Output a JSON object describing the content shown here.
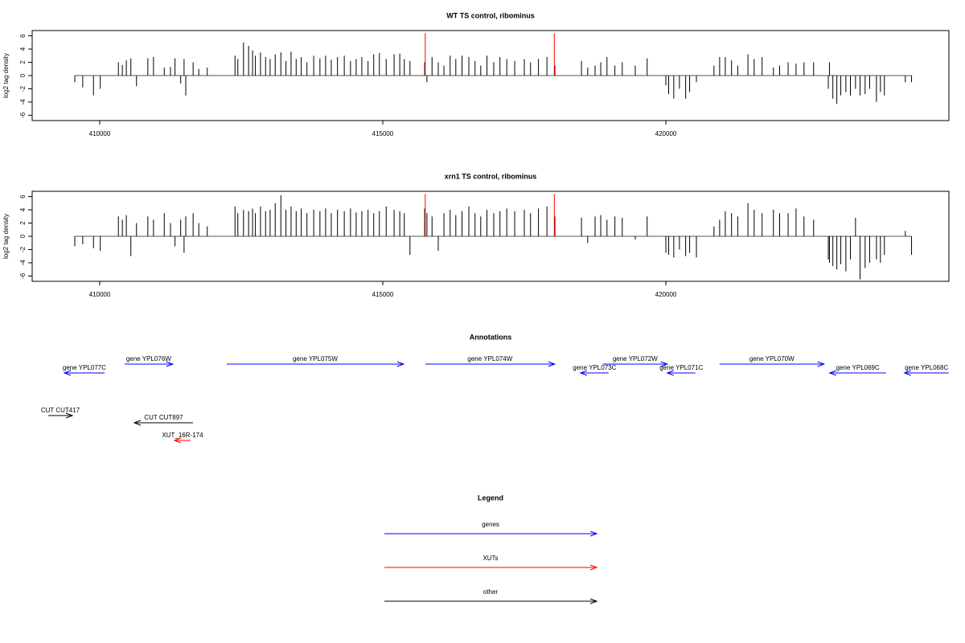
{
  "chart_data": [
    {
      "type": "bar",
      "title": "WT TS control, ribominus",
      "ylabel": "log2 tag density",
      "color": "#000000",
      "xlim": [
        408807,
        425000
      ],
      "xticks": [
        410000,
        415000,
        420000
      ],
      "ylim": [
        -6.8,
        6.8
      ],
      "yticks": [
        -6,
        -4,
        -2,
        0,
        2,
        4,
        6
      ],
      "x": [
        409560,
        409700,
        409890,
        410010,
        410330,
        410400,
        410470,
        410550,
        410650,
        410850,
        410950,
        411140,
        411250,
        411330,
        411430,
        411490,
        411520,
        411650,
        411750,
        411900,
        412390,
        412440,
        412540,
        412630,
        412700,
        412750,
        412840,
        412930,
        413010,
        413100,
        413200,
        413290,
        413380,
        413470,
        413560,
        413660,
        413780,
        413890,
        413990,
        414090,
        414200,
        414320,
        414430,
        414530,
        414630,
        414740,
        414840,
        414940,
        415060,
        415200,
        415300,
        415380,
        415480,
        415740,
        415780,
        415870,
        415980,
        416080,
        416190,
        416290,
        416400,
        416520,
        416630,
        416730,
        416840,
        416960,
        417070,
        417190,
        417330,
        417500,
        417610,
        417750,
        417900,
        418040,
        418510,
        418620,
        418750,
        418850,
        418960,
        419100,
        419230,
        419460,
        419670,
        420000,
        420050,
        420140,
        420240,
        420350,
        420420,
        420540,
        420850,
        420950,
        421050,
        421160,
        421270,
        421450,
        421560,
        421700,
        421900,
        422010,
        422160,
        422300,
        422440,
        422610,
        422870,
        422890,
        422950,
        423020,
        423090,
        423180,
        423260,
        423350,
        423430,
        423520,
        423600,
        423720,
        423790,
        423860,
        424230,
        424340
      ],
      "values": [
        -1,
        -1.8,
        -3,
        -2,
        2,
        1.6,
        2.3,
        2.6,
        -1.6,
        2.6,
        2.8,
        1.2,
        1.3,
        2.6,
        -1.2,
        2.5,
        -3,
        2,
        1,
        1.2,
        3,
        2.5,
        5,
        4.5,
        3.8,
        3,
        3.5,
        2.8,
        2.5,
        3.2,
        3.5,
        2.2,
        3.6,
        2.5,
        2.8,
        2,
        3,
        2.6,
        3,
        2.4,
        2.8,
        3,
        2.2,
        2.5,
        2.8,
        2.2,
        3.2,
        3.4,
        2.5,
        3.2,
        3.3,
        2.5,
        2.2,
        2,
        -1,
        2.8,
        2,
        1.5,
        3,
        2.5,
        3,
        2.8,
        2.2,
        1.5,
        3,
        2,
        2.8,
        2.5,
        2.2,
        2.5,
        2,
        2.5,
        2.8,
        1.5,
        2.2,
        1.2,
        1.5,
        2,
        2.8,
        1.5,
        2,
        1.5,
        2.6,
        -1.5,
        -2.8,
        -3.5,
        -2,
        -3.5,
        -2.5,
        -1,
        1.5,
        2.8,
        2.8,
        2.3,
        1.5,
        3.2,
        2.5,
        2.8,
        1.2,
        1.5,
        2,
        1.8,
        2,
        2,
        -2,
        2,
        -3.5,
        -4.3,
        -3,
        -2.5,
        -3,
        -2,
        -3,
        -2.8,
        -2,
        -4,
        -2.5,
        -3,
        -1,
        -1
      ],
      "highlights": {
        "x": [
          415750,
          418030
        ],
        "values": [
          6.4,
          6.4
        ],
        "color": "#ff0000"
      }
    },
    {
      "type": "bar",
      "title": "xrn1 TS control, ribominus",
      "ylabel": "log2 tag density",
      "color": "#000000",
      "xlim": [
        408807,
        425000
      ],
      "xticks": [
        410000,
        415000,
        420000
      ],
      "ylim": [
        -6.8,
        6.8
      ],
      "yticks": [
        -6,
        -4,
        -2,
        0,
        2,
        4,
        6
      ],
      "x": [
        409560,
        409700,
        409890,
        410010,
        410330,
        410400,
        410470,
        410550,
        410650,
        410850,
        410950,
        411140,
        411250,
        411330,
        411430,
        411490,
        411520,
        411650,
        411750,
        411900,
        412390,
        412440,
        412540,
        412630,
        412700,
        412750,
        412840,
        412930,
        413010,
        413100,
        413200,
        413290,
        413380,
        413470,
        413560,
        413660,
        413780,
        413890,
        413990,
        414090,
        414200,
        414320,
        414430,
        414530,
        414630,
        414740,
        414840,
        414940,
        415060,
        415200,
        415300,
        415380,
        415480,
        415740,
        415780,
        415870,
        415980,
        416080,
        416190,
        416290,
        416400,
        416520,
        416630,
        416730,
        416840,
        416960,
        417070,
        417190,
        417330,
        417500,
        417610,
        417750,
        417900,
        418040,
        418510,
        418620,
        418750,
        418850,
        418960,
        419100,
        419230,
        419460,
        419670,
        420000,
        420050,
        420140,
        420240,
        420350,
        420420,
        420540,
        420850,
        420950,
        421050,
        421160,
        421270,
        421450,
        421560,
        421700,
        421900,
        422010,
        422160,
        422300,
        422440,
        422610,
        422870,
        422890,
        422950,
        423020,
        423090,
        423180,
        423260,
        423350,
        423430,
        423520,
        423600,
        423720,
        423790,
        423860,
        424230,
        424340
      ],
      "values": [
        -1.5,
        -1.2,
        -1.8,
        -2.2,
        3,
        2.5,
        3.2,
        -3,
        2,
        3,
        2.5,
        3.5,
        2,
        -1.5,
        2.5,
        -2.5,
        3,
        3.5,
        2,
        1.5,
        4.5,
        3.5,
        4,
        3.8,
        4.2,
        3.5,
        4.5,
        3.8,
        4,
        5,
        6.2,
        4,
        4.5,
        3.8,
        4.2,
        3.5,
        4,
        3.8,
        4.2,
        3.5,
        4,
        3.8,
        4.2,
        3.6,
        3.8,
        4,
        3.5,
        3.8,
        4.5,
        4,
        3.8,
        3.5,
        -2.8,
        4.2,
        3.5,
        3,
        -2.2,
        3.5,
        4,
        3.2,
        3.8,
        4.5,
        3.5,
        3,
        4,
        3.5,
        3.8,
        4.2,
        3.8,
        4,
        3.5,
        4.2,
        4.5,
        3,
        2.8,
        -1,
        3,
        3.2,
        2.5,
        3,
        2.8,
        -0.5,
        3,
        -2.5,
        -2.8,
        -3.2,
        -2,
        -3,
        -2.5,
        -3.2,
        1.5,
        2.5,
        3.8,
        3.5,
        3,
        5,
        4,
        3.5,
        4,
        3.5,
        3.5,
        4.2,
        3,
        2.5,
        -3.5,
        -4,
        -4.5,
        -5,
        -4.2,
        -5.3,
        -3.5,
        2.8,
        -6.5,
        -4.8,
        -4,
        -3.5,
        -4,
        -2.8,
        0.8,
        -2.8
      ],
      "highlights": {
        "x": [
          415750,
          418030
        ],
        "values": [
          6.4,
          6.4
        ],
        "color": "#ff0000"
      }
    }
  ],
  "annotations": {
    "title": "Annotations",
    "xlim": [
      408807,
      425000
    ],
    "items": [
      {
        "label": "gene YPL077C",
        "start": 409375,
        "end": 410085,
        "strand": "-",
        "color": "#0000ff"
      },
      {
        "label": "gene YPL076W",
        "start": 410440,
        "end": 411290,
        "strand": "+",
        "color": "#0000ff"
      },
      {
        "label": "gene YPL075W",
        "start": 412244,
        "end": 415368,
        "strand": "+",
        "color": "#0000ff"
      },
      {
        "label": "gene YPL074W",
        "start": 415751,
        "end": 418037,
        "strand": "+",
        "color": "#0000ff"
      },
      {
        "label": "gene YPL073C",
        "start": 418492,
        "end": 418989,
        "strand": "-",
        "color": "#0000ff"
      },
      {
        "label": "gene YPL072W",
        "start": 418889,
        "end": 420025,
        "strand": "+",
        "color": "#0000ff"
      },
      {
        "label": "gene YPL071C",
        "start": 420025,
        "end": 420522,
        "strand": "-",
        "color": "#0000ff"
      },
      {
        "label": "gene YPL070W",
        "start": 420948,
        "end": 422794,
        "strand": "+",
        "color": "#0000ff"
      },
      {
        "label": "gene YPL069C",
        "start": 422894,
        "end": 423888,
        "strand": "-",
        "color": "#0000ff"
      },
      {
        "label": "gene YPL068C",
        "start": 424214,
        "end": 424995,
        "strand": "-",
        "color": "#0000ff"
      },
      {
        "label": "CUT CUT417",
        "start": 409091,
        "end": 409517,
        "strand": "+",
        "color": "#000000"
      },
      {
        "label": "CUT CUT897",
        "start": 410611,
        "end": 411647,
        "strand": "-",
        "color": "#000000"
      },
      {
        "label": "XUT_16R-174",
        "start": 411321,
        "end": 411605,
        "strand": "-",
        "color": "#ff0000"
      }
    ]
  },
  "legend": {
    "title": "Legend",
    "entries": [
      {
        "label": "genes",
        "color": "#0000ff"
      },
      {
        "label": "XUTs",
        "color": "#ff0000"
      },
      {
        "label": "other",
        "color": "#000000"
      }
    ]
  }
}
